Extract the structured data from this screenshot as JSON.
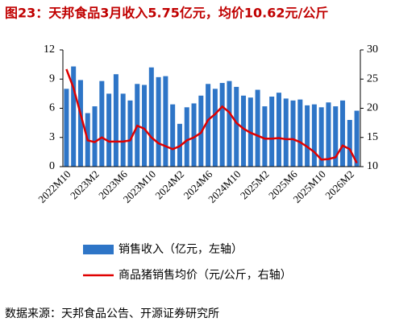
{
  "chart_data": {
    "type": "bar",
    "title": "图23：天邦食品3月收入5.75亿元，均价10.62元/公斤",
    "source": "数据来源：天邦食品公告、开源证券研究所",
    "categories": [
      "2022M10",
      null,
      null,
      null,
      "2023M2",
      null,
      null,
      null,
      "2023M6",
      null,
      null,
      null,
      "2023M10",
      null,
      null,
      null,
      "2024M2",
      null,
      null,
      null,
      "2024M6",
      null,
      null,
      null,
      "2024M10",
      null,
      null,
      null,
      "2025M2",
      null,
      null,
      null,
      "2025M6",
      null,
      null,
      null,
      "2025M10",
      null,
      null,
      null,
      "2026M2",
      null
    ],
    "series": [
      {
        "name": "销售收入（亿元，左轴）",
        "type": "bar",
        "axis": "y",
        "color": "#2e75c7",
        "values": [
          8.0,
          10.3,
          8.9,
          5.5,
          6.2,
          8.8,
          7.5,
          9.5,
          7.5,
          6.8,
          8.5,
          8.4,
          10.2,
          9.2,
          9.3,
          6.4,
          4.4,
          6.1,
          6.5,
          7.3,
          8.5,
          8.0,
          8.6,
          8.8,
          8.2,
          7.3,
          7.1,
          7.9,
          6.2,
          7.2,
          7.6,
          7.0,
          6.8,
          6.9,
          6.3,
          6.4,
          6.1,
          6.6,
          6.2,
          6.8,
          4.8,
          5.75
        ]
      },
      {
        "name": "商品猪销售均价（元/公斤，右轴）",
        "type": "line",
        "axis": "y2",
        "color": "#e00000",
        "values": [
          26.7,
          23.5,
          19.0,
          14.5,
          14.2,
          15.0,
          14.3,
          14.3,
          14.3,
          14.5,
          17.0,
          16.5,
          15.0,
          14.0,
          13.5,
          13.0,
          13.5,
          14.5,
          15.0,
          15.8,
          18.0,
          19.0,
          20.3,
          19.3,
          17.5,
          16.5,
          15.8,
          15.3,
          14.8,
          14.8,
          14.9,
          14.7,
          14.7,
          14.2,
          13.4,
          12.5,
          11.2,
          11.3,
          11.6,
          13.6,
          13.0,
          10.62
        ]
      }
    ],
    "ylim": [
      0,
      12
    ],
    "yticks": [
      0,
      3,
      6,
      9,
      12
    ],
    "y2lim": [
      10,
      30
    ],
    "y2ticks": [
      10,
      15,
      20,
      25,
      30
    ]
  }
}
